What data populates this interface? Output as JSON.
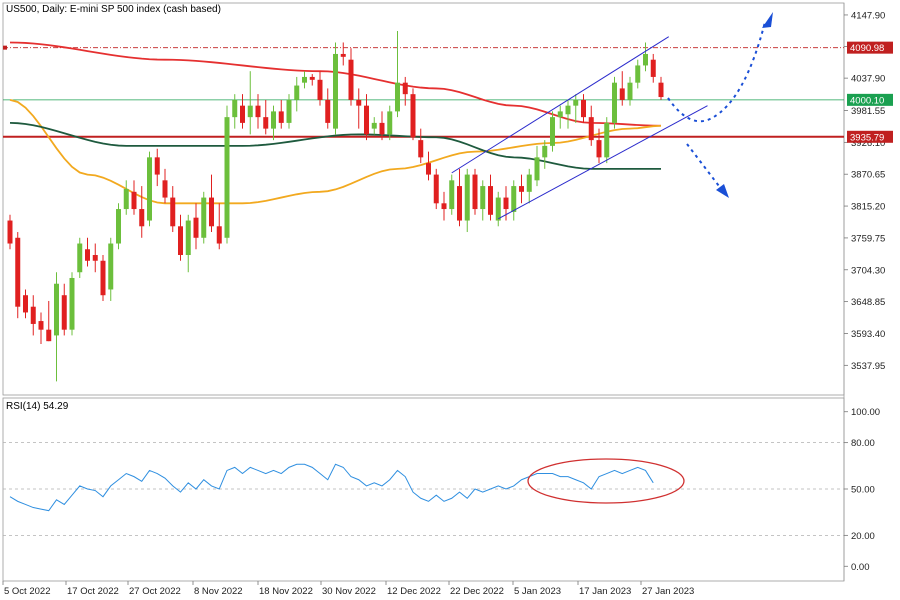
{
  "header": {
    "title": "US500, Daily:  E-mini SP 500 index (cash based)"
  },
  "rsi_panel": {
    "label": "RSI(14) 54.29"
  },
  "chart_data": [
    {
      "type": "candlestick",
      "title": "US500, Daily:  E-mini SP 500 index (cash based)",
      "ylim": [
        3495,
        4160
      ],
      "y_ticks": [
        "4147.90",
        "4092.90",
        "4037.90",
        "3981.55",
        "3926.10",
        "3870.65",
        "3815.20",
        "3759.75",
        "3704.30",
        "3648.85",
        "3593.40",
        "3537.95"
      ],
      "x_ticks": [
        "5 Oct 2022",
        "17 Oct 2022",
        "27 Oct 2022",
        "8 Nov 2022",
        "18 Nov 2022",
        "30 Nov 2022",
        "12 Dec 2022",
        "22 Dec 2022",
        "5 Jan 2023",
        "17 Jan 2023",
        "27 Jan 2023"
      ],
      "candles": [
        {
          "o": 3790,
          "h": 3800,
          "l": 3740,
          "c": 3750
        },
        {
          "o": 3760,
          "h": 3770,
          "l": 3620,
          "c": 3640
        },
        {
          "o": 3660,
          "h": 3670,
          "l": 3620,
          "c": 3630
        },
        {
          "o": 3640,
          "h": 3660,
          "l": 3590,
          "c": 3610
        },
        {
          "o": 3615,
          "h": 3630,
          "l": 3575,
          "c": 3600
        },
        {
          "o": 3600,
          "h": 3650,
          "l": 3580,
          "c": 3580
        },
        {
          "o": 3590,
          "h": 3700,
          "l": 3510,
          "c": 3680
        },
        {
          "o": 3660,
          "h": 3680,
          "l": 3590,
          "c": 3600
        },
        {
          "o": 3600,
          "h": 3700,
          "l": 3590,
          "c": 3690
        },
        {
          "o": 3700,
          "h": 3760,
          "l": 3690,
          "c": 3750
        },
        {
          "o": 3740,
          "h": 3760,
          "l": 3710,
          "c": 3720
        },
        {
          "o": 3730,
          "h": 3750,
          "l": 3700,
          "c": 3720
        },
        {
          "o": 3720,
          "h": 3730,
          "l": 3650,
          "c": 3660
        },
        {
          "o": 3670,
          "h": 3760,
          "l": 3650,
          "c": 3750
        },
        {
          "o": 3750,
          "h": 3820,
          "l": 3740,
          "c": 3810
        },
        {
          "o": 3810,
          "h": 3860,
          "l": 3800,
          "c": 3845
        },
        {
          "o": 3840,
          "h": 3860,
          "l": 3800,
          "c": 3810
        },
        {
          "o": 3810,
          "h": 3850,
          "l": 3760,
          "c": 3780
        },
        {
          "o": 3790,
          "h": 3910,
          "l": 3780,
          "c": 3900
        },
        {
          "o": 3900,
          "h": 3915,
          "l": 3850,
          "c": 3870
        },
        {
          "o": 3860,
          "h": 3880,
          "l": 3820,
          "c": 3830
        },
        {
          "o": 3830,
          "h": 3850,
          "l": 3770,
          "c": 3780
        },
        {
          "o": 3780,
          "h": 3800,
          "l": 3720,
          "c": 3730
        },
        {
          "o": 3730,
          "h": 3800,
          "l": 3700,
          "c": 3790
        },
        {
          "o": 3795,
          "h": 3820,
          "l": 3740,
          "c": 3760
        },
        {
          "o": 3760,
          "h": 3840,
          "l": 3750,
          "c": 3830
        },
        {
          "o": 3830,
          "h": 3870,
          "l": 3770,
          "c": 3780
        },
        {
          "o": 3780,
          "h": 3820,
          "l": 3740,
          "c": 3750
        },
        {
          "o": 3760,
          "h": 3990,
          "l": 3750,
          "c": 3970
        },
        {
          "o": 3970,
          "h": 4010,
          "l": 3950,
          "c": 4000
        },
        {
          "o": 3990,
          "h": 4010,
          "l": 3950,
          "c": 3960
        },
        {
          "o": 3970,
          "h": 4050,
          "l": 3940,
          "c": 3990
        },
        {
          "o": 3990,
          "h": 4010,
          "l": 3950,
          "c": 3970
        },
        {
          "o": 3970,
          "h": 4000,
          "l": 3940,
          "c": 3950
        },
        {
          "o": 3950,
          "h": 3990,
          "l": 3930,
          "c": 3980
        },
        {
          "o": 3980,
          "h": 4000,
          "l": 3950,
          "c": 3960
        },
        {
          "o": 3960,
          "h": 4010,
          "l": 3950,
          "c": 4000
        },
        {
          "o": 4000,
          "h": 4040,
          "l": 3980,
          "c": 4025
        },
        {
          "o": 4030,
          "h": 4050,
          "l": 4020,
          "c": 4040
        },
        {
          "o": 4040,
          "h": 4045,
          "l": 4025,
          "c": 4035
        },
        {
          "o": 4035,
          "h": 4050,
          "l": 3990,
          "c": 4000
        },
        {
          "o": 4000,
          "h": 4020,
          "l": 3950,
          "c": 3960
        },
        {
          "o": 3950,
          "h": 4100,
          "l": 3940,
          "c": 4080
        },
        {
          "o": 4080,
          "h": 4100,
          "l": 4060,
          "c": 4075
        },
        {
          "o": 4070,
          "h": 4090,
          "l": 3990,
          "c": 4000
        },
        {
          "o": 4000,
          "h": 4020,
          "l": 3950,
          "c": 3990
        },
        {
          "o": 3990,
          "h": 4010,
          "l": 3930,
          "c": 3940
        },
        {
          "o": 3950,
          "h": 3970,
          "l": 3940,
          "c": 3960
        },
        {
          "o": 3960,
          "h": 3980,
          "l": 3930,
          "c": 3940
        },
        {
          "o": 3940,
          "h": 3990,
          "l": 3930,
          "c": 3980
        },
        {
          "o": 3980,
          "h": 4120,
          "l": 3970,
          "c": 4030
        },
        {
          "o": 4030,
          "h": 4040,
          "l": 3990,
          "c": 4010
        },
        {
          "o": 4010,
          "h": 4020,
          "l": 3930,
          "c": 3935
        },
        {
          "o": 3930,
          "h": 3950,
          "l": 3890,
          "c": 3900
        },
        {
          "o": 3890,
          "h": 3910,
          "l": 3860,
          "c": 3870
        },
        {
          "o": 3870,
          "h": 3880,
          "l": 3810,
          "c": 3820
        },
        {
          "o": 3820,
          "h": 3840,
          "l": 3790,
          "c": 3810
        },
        {
          "o": 3810,
          "h": 3870,
          "l": 3800,
          "c": 3860
        },
        {
          "o": 3850,
          "h": 3880,
          "l": 3780,
          "c": 3790
        },
        {
          "o": 3790,
          "h": 3880,
          "l": 3770,
          "c": 3870
        },
        {
          "o": 3870,
          "h": 3880,
          "l": 3800,
          "c": 3810
        },
        {
          "o": 3810,
          "h": 3860,
          "l": 3790,
          "c": 3850
        },
        {
          "o": 3850,
          "h": 3870,
          "l": 3790,
          "c": 3800
        },
        {
          "o": 3790,
          "h": 3840,
          "l": 3780,
          "c": 3830
        },
        {
          "o": 3830,
          "h": 3850,
          "l": 3790,
          "c": 3810
        },
        {
          "o": 3805,
          "h": 3860,
          "l": 3790,
          "c": 3850
        },
        {
          "o": 3850,
          "h": 3870,
          "l": 3820,
          "c": 3840
        },
        {
          "o": 3840,
          "h": 3880,
          "l": 3820,
          "c": 3870
        },
        {
          "o": 3860,
          "h": 3920,
          "l": 3850,
          "c": 3900
        },
        {
          "o": 3900,
          "h": 3930,
          "l": 3880,
          "c": 3920
        },
        {
          "o": 3920,
          "h": 3980,
          "l": 3910,
          "c": 3970
        },
        {
          "o": 3970,
          "h": 3990,
          "l": 3950,
          "c": 3980
        },
        {
          "o": 3975,
          "h": 4000,
          "l": 3950,
          "c": 3990
        },
        {
          "o": 3990,
          "h": 4010,
          "l": 3960,
          "c": 4000
        },
        {
          "o": 4000,
          "h": 4010,
          "l": 3960,
          "c": 3970
        },
        {
          "o": 3970,
          "h": 3990,
          "l": 3920,
          "c": 3930
        },
        {
          "o": 3930,
          "h": 3950,
          "l": 3890,
          "c": 3900
        },
        {
          "o": 3900,
          "h": 3970,
          "l": 3890,
          "c": 3960
        },
        {
          "o": 3960,
          "h": 4040,
          "l": 3950,
          "c": 4030
        },
        {
          "o": 4020,
          "h": 4050,
          "l": 3990,
          "c": 4000
        },
        {
          "o": 4000,
          "h": 4040,
          "l": 3990,
          "c": 4030
        },
        {
          "o": 4030,
          "h": 4070,
          "l": 4020,
          "c": 4060
        },
        {
          "o": 4060,
          "h": 4100,
          "l": 4050,
          "c": 4080
        },
        {
          "o": 4070,
          "h": 4080,
          "l": 4030,
          "c": 4040
        },
        {
          "o": 4030,
          "h": 4040,
          "l": 4000,
          "c": 4005
        }
      ],
      "moving_averages": [
        {
          "color": "#e53030",
          "values_anchor": [
            [
              0,
              4100
            ],
            [
              20,
              4070
            ],
            [
              40,
              4050
            ],
            [
              55,
              4020
            ],
            [
              65,
              3990
            ],
            [
              75,
              3960
            ],
            [
              84,
              3955
            ]
          ]
        },
        {
          "color": "#f2a91f",
          "values_anchor": [
            [
              0,
              4000
            ],
            [
              10,
              3870
            ],
            [
              20,
              3820
            ],
            [
              30,
              3820
            ],
            [
              40,
              3840
            ],
            [
              50,
              3880
            ],
            [
              60,
              3910
            ],
            [
              70,
              3925
            ],
            [
              80,
              3950
            ],
            [
              84,
              3955
            ]
          ]
        },
        {
          "color": "#1e5a3e",
          "values_anchor": [
            [
              0,
              3960
            ],
            [
              15,
              3920
            ],
            [
              30,
              3920
            ],
            [
              45,
              3940
            ],
            [
              55,
              3935
            ],
            [
              65,
              3900
            ],
            [
              75,
              3880
            ],
            [
              84,
              3880
            ]
          ]
        }
      ],
      "horizontal_levels": [
        {
          "value": 4090.98,
          "label": "4090.98",
          "color": "#c02020",
          "style": "dash-dot"
        },
        {
          "value": 4000.1,
          "label": "4000.10",
          "color": "#1aa050",
          "style": "solid"
        },
        {
          "value": 3935.79,
          "label": "3935.79",
          "color": "#c02020",
          "style": "solid-thick"
        }
      ]
    },
    {
      "type": "line",
      "title": "RSI(14) 54.29",
      "ylim": [
        -5,
        105
      ],
      "y_ticks": [
        "100.00",
        "80.00",
        "50.00",
        "20.00",
        "0.00"
      ],
      "levels": [
        80,
        50,
        20
      ],
      "values": [
        45,
        42,
        40,
        38,
        37,
        36,
        43,
        40,
        46,
        52,
        50,
        49,
        45,
        52,
        56,
        60,
        58,
        55,
        62,
        60,
        57,
        52,
        48,
        54,
        50,
        56,
        52,
        50,
        62,
        64,
        60,
        64,
        62,
        60,
        62,
        60,
        64,
        66,
        66,
        64,
        60,
        56,
        66,
        64,
        58,
        56,
        52,
        54,
        52,
        56,
        62,
        58,
        48,
        44,
        42,
        46,
        42,
        44,
        48,
        44,
        50,
        48,
        50,
        52,
        50,
        52,
        56,
        58,
        60,
        60,
        60,
        58,
        58,
        56,
        54,
        50,
        58,
        60,
        62,
        60,
        62,
        64,
        62,
        54
      ]
    }
  ]
}
